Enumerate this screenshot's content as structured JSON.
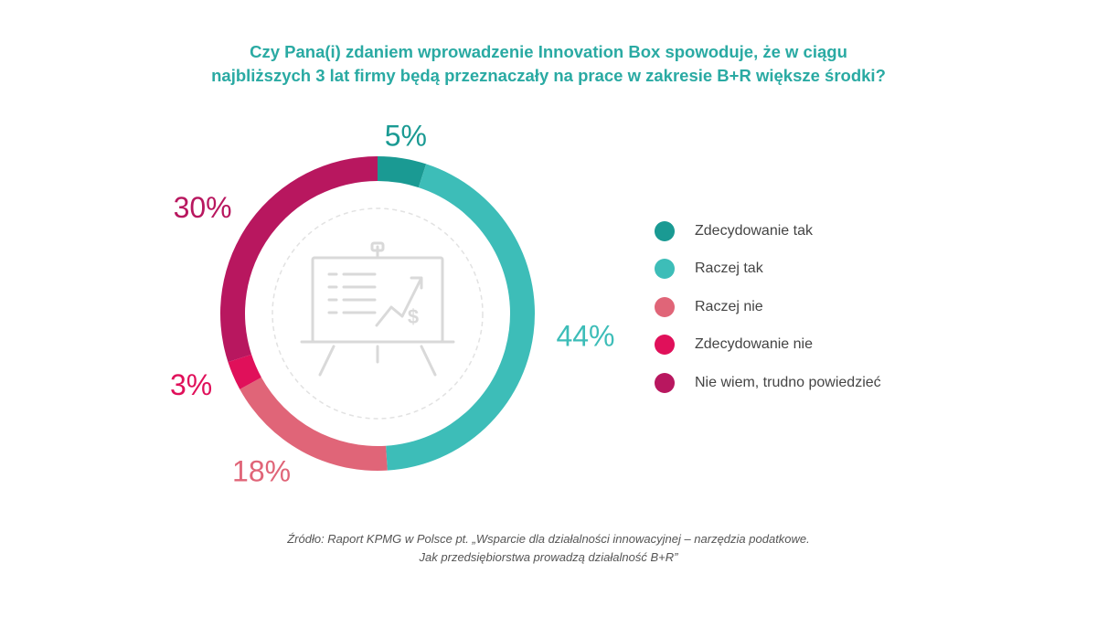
{
  "title": {
    "line1": "Czy Pana(i) zdaniem wprowadzenie Innovation Box spowoduje, że w ciągu",
    "line2": "najbliższych 3 lat firmy będą przeznaczały na prace w zakresie B+R większe środki?"
  },
  "chart_data": {
    "type": "pie",
    "style": "donut",
    "categories": [
      "Zdecydowanie tak",
      "Raczej tak",
      "Raczej nie",
      "Zdecydowanie nie",
      "Nie wiem, trudno powiedzieć"
    ],
    "values": [
      5,
      44,
      18,
      3,
      30
    ],
    "data_labels": [
      "5%",
      "44%",
      "18%",
      "3%",
      "30%"
    ],
    "colors": [
      "#1a9a93",
      "#3dbdb8",
      "#e06578",
      "#e0105a",
      "#b8175f"
    ],
    "legend_position": "right",
    "center_icon": "presentation-board-chart-dollar-icon"
  },
  "legend": {
    "items": [
      {
        "label": "Zdecydowanie tak",
        "color": "#1a9a93"
      },
      {
        "label": "Raczej tak",
        "color": "#3dbdb8"
      },
      {
        "label": "Raczej nie",
        "color": "#e06578"
      },
      {
        "label": "Zdecydowanie nie",
        "color": "#e0105a"
      },
      {
        "label": "Nie wiem, trudno powiedzieć",
        "color": "#b8175f"
      }
    ]
  },
  "source": {
    "line1": "Źródło: Raport KPMG w Polsce pt. „Wsparcie dla działalności innowacyjnej – narzędzia podatkowe.",
    "line2": "Jak przedsiębiorstwa prowadzą działalność B+R”"
  }
}
